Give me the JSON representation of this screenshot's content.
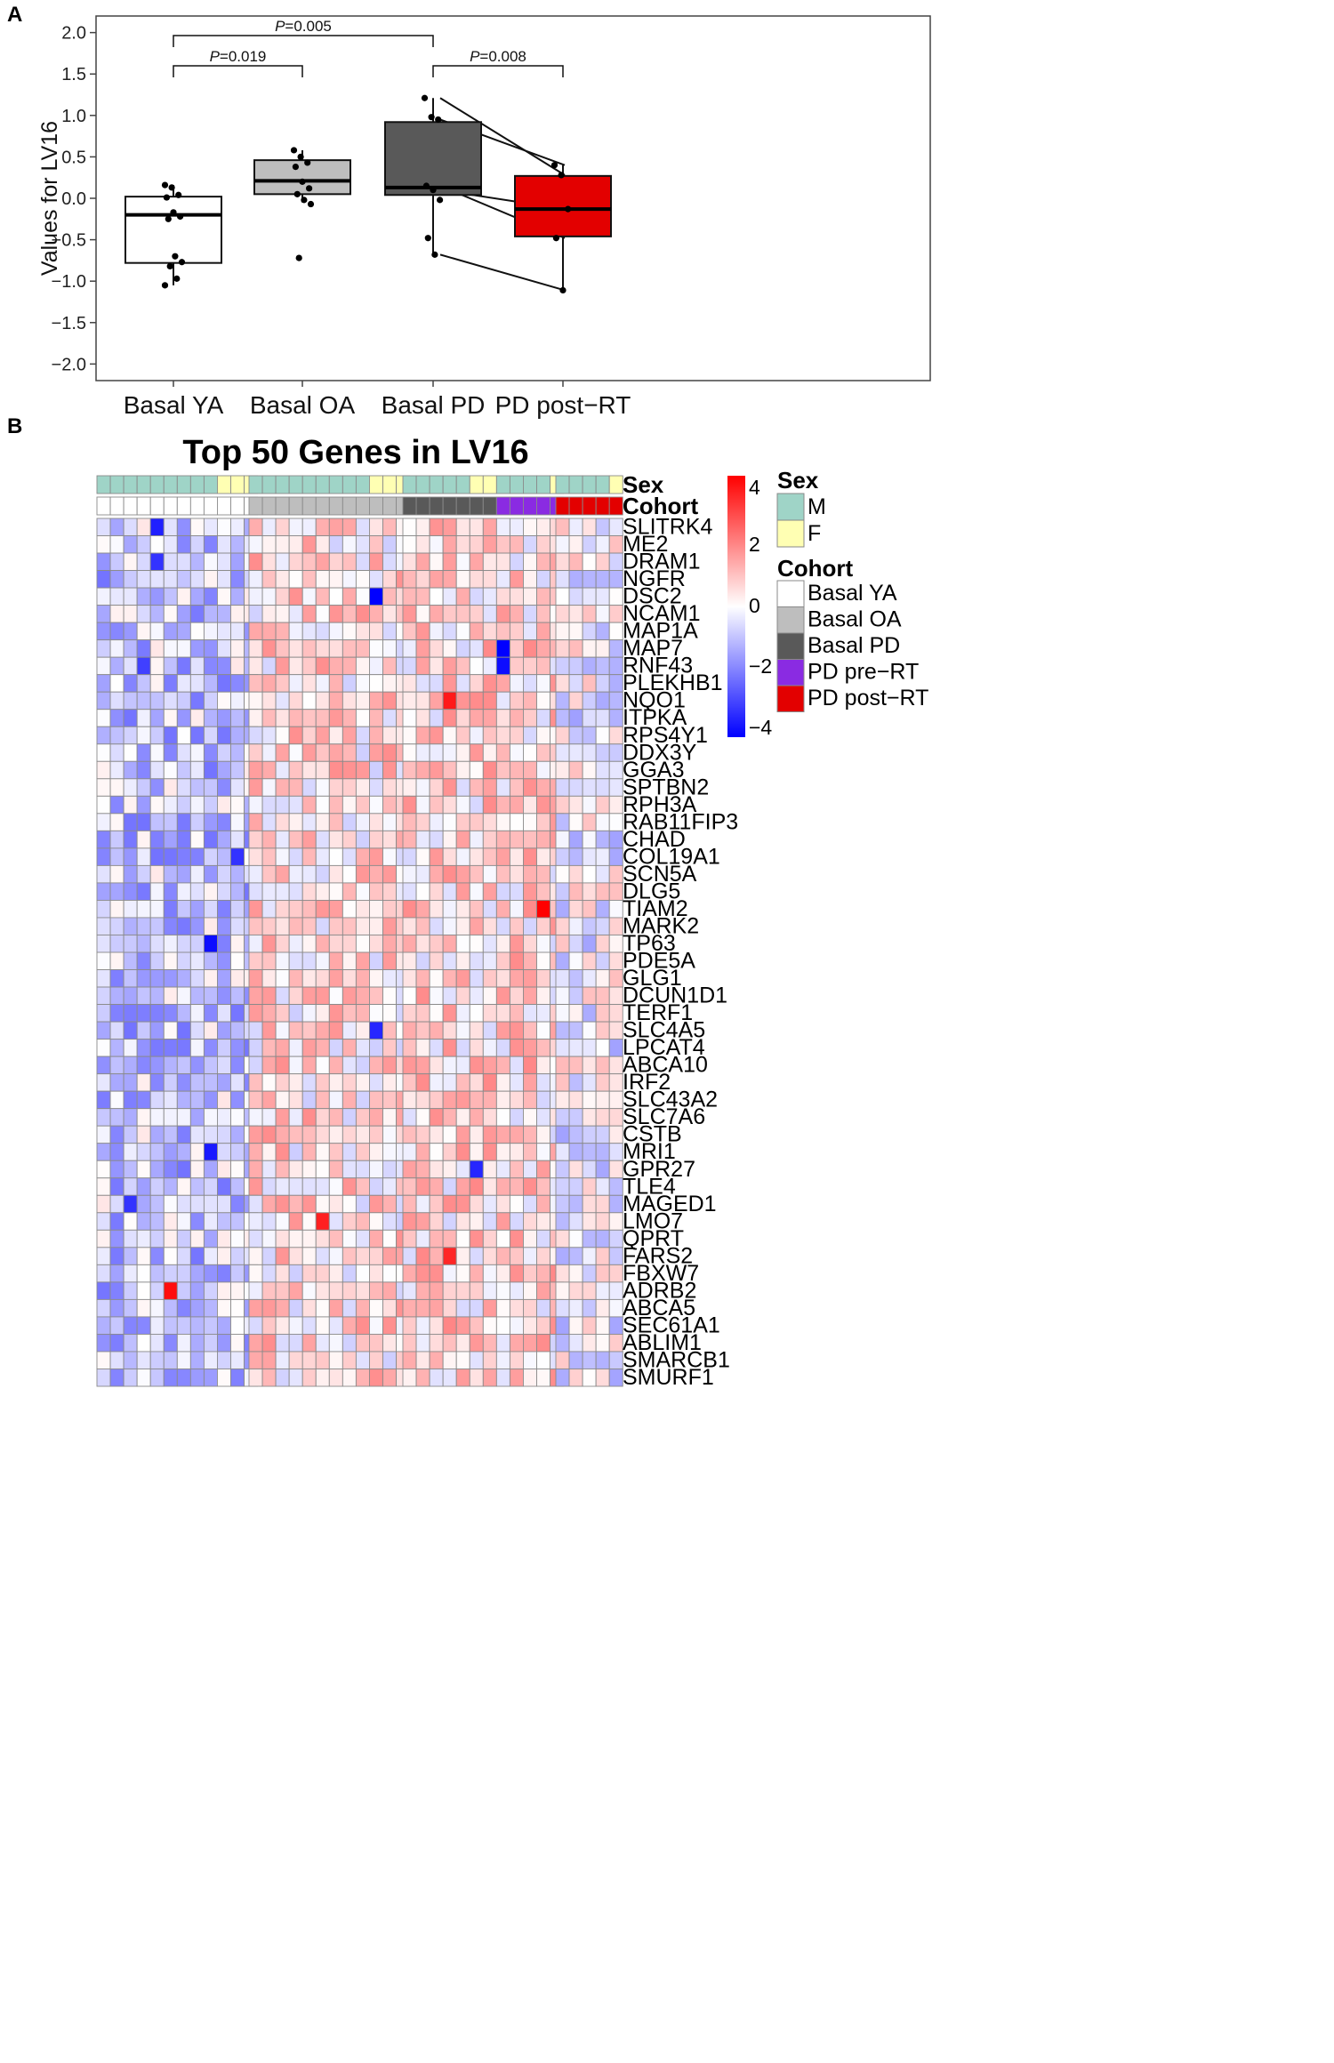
{
  "chart_data": [
    {
      "type": "box",
      "panel": "A",
      "title": "",
      "ylabel": "Values for LV16",
      "xlabel": "",
      "ylim": [
        -2.2,
        2.2
      ],
      "yticks": [
        2.0,
        1.5,
        1.0,
        0.5,
        0.0,
        -0.5,
        -1.0,
        -1.5,
        -2.0
      ],
      "ytick_labels": [
        "2.0",
        "1.5",
        "1.0",
        "0.5",
        "0.0",
        "−0.5",
        "−1.0",
        "−1.5",
        "−2.0"
      ],
      "grid": false,
      "categories": [
        "Basal YA",
        "Basal OA",
        "Basal PD",
        "PD post−RT"
      ],
      "boxes": [
        {
          "name": "Basal YA",
          "fill": "#ffffff",
          "q1": -0.78,
          "median": -0.2,
          "q3": 0.02,
          "whisker_low": -1.05,
          "whisker_high": 0.16,
          "points": [
            0.16,
            0.13,
            0.04,
            0.01,
            -0.17,
            -0.22,
            -0.25,
            -0.7,
            -0.77,
            -0.82,
            -0.97,
            -1.05
          ]
        },
        {
          "name": "Basal OA",
          "fill": "#bebebe",
          "q1": 0.05,
          "median": 0.21,
          "q3": 0.46,
          "whisker_low": -0.05,
          "whisker_high": 0.58,
          "points": [
            0.58,
            0.5,
            0.43,
            0.38,
            0.2,
            0.12,
            0.05,
            -0.02,
            -0.07,
            -0.72
          ]
        },
        {
          "name": "Basal PD",
          "fill": "#595959",
          "q1": 0.04,
          "median": 0.13,
          "q3": 0.92,
          "whisker_low": -0.68,
          "whisker_high": 1.21,
          "points": [
            1.21,
            0.98,
            0.95,
            0.15,
            0.1,
            -0.02,
            -0.48,
            -0.68
          ]
        },
        {
          "name": "PD post−RT",
          "fill": "#e30000",
          "q1": -0.46,
          "median": -0.13,
          "q3": 0.27,
          "whisker_low": -1.11,
          "whisker_high": 0.4,
          "points": [
            0.4,
            0.28,
            -0.13,
            -0.48,
            -1.11
          ]
        }
      ],
      "paired_lines": [
        [
          1.21,
          0.28
        ],
        [
          0.95,
          0.4
        ],
        [
          0.15,
          -0.48
        ],
        [
          0.1,
          -0.13
        ],
        [
          -0.68,
          -1.11
        ]
      ],
      "annotations": [
        {
          "between": [
            0,
            2
          ],
          "p": "0.005",
          "level": 2
        },
        {
          "between": [
            0,
            1
          ],
          "p": "0.019",
          "level": 1
        },
        {
          "between": [
            2,
            3
          ],
          "p": "0.008",
          "level": 1
        }
      ]
    },
    {
      "type": "heatmap",
      "panel": "B",
      "title": "Top 50 Genes in LV16",
      "rows": [
        "SLITRK4",
        "ME2",
        "DRAM1",
        "NGFR",
        "DSC2",
        "NCAM1",
        "MAP1A",
        "MAP7",
        "RNF43",
        "PLEKHB1",
        "NQO1",
        "ITPKA",
        "RPS4Y1",
        "DDX3Y",
        "GGA3",
        "SPTBN2",
        "RPH3A",
        "RAB11FIP3",
        "CHAD",
        "COL19A1",
        "SCN5A",
        "DLG5",
        "TIAM2",
        "MARK2",
        "TP63",
        "PDE5A",
        "GLG1",
        "DCUN1D1",
        "TERF1",
        "SLC4A5",
        "LPCAT4",
        "ABCA10",
        "IRF2",
        "SLC43A2",
        "SLC7A6",
        "CSTB",
        "MRI1",
        "GPR27",
        "TLE4",
        "MAGED1",
        "LMO7",
        "QPRT",
        "FARS2",
        "FBXW7",
        "ADRB2",
        "ABCA5",
        "SEC61A1",
        "ABLIM1",
        "SMARCB1",
        "SMURF1"
      ],
      "groups": [
        {
          "name": "Basal YA",
          "n": 12,
          "sex": [
            "M",
            "M",
            "M",
            "M",
            "M",
            "M",
            "M",
            "M",
            "M",
            "F",
            "F",
            "F"
          ],
          "cohort": [
            "Basal YA",
            "Basal YA",
            "Basal YA",
            "Basal YA",
            "Basal YA",
            "Basal YA",
            "Basal YA",
            "Basal YA",
            "Basal YA",
            "Basal YA",
            "Basal YA",
            "Basal YA"
          ]
        },
        {
          "name": "Basal OA",
          "n": 12,
          "sex": [
            "M",
            "M",
            "M",
            "M",
            "M",
            "M",
            "M",
            "M",
            "M",
            "F",
            "F",
            "F"
          ],
          "cohort": [
            "Basal OA",
            "Basal OA",
            "Basal OA",
            "Basal OA",
            "Basal OA",
            "Basal OA",
            "Basal OA",
            "Basal OA",
            "Basal OA",
            "Basal OA",
            "Basal OA",
            "Basal OA"
          ]
        },
        {
          "name": "PD",
          "n": 12,
          "sex": [
            "M",
            "M",
            "M",
            "M",
            "M",
            "F",
            "F",
            "M",
            "M",
            "M",
            "M",
            "F"
          ],
          "cohort": [
            "Basal PD",
            "Basal PD",
            "Basal PD",
            "Basal PD",
            "Basal PD",
            "Basal PD",
            "Basal PD",
            "PD pre−RT",
            "PD pre−RT",
            "PD pre−RT",
            "PD pre−RT",
            "PD pre−RT"
          ]
        },
        {
          "name": "PD post−RT",
          "n": 5,
          "sex": [
            "M",
            "M",
            "M",
            "M",
            "F"
          ],
          "cohort": [
            "PD post−RT",
            "PD post−RT",
            "PD post−RT",
            "PD post−RT",
            "PD post−RT"
          ]
        }
      ],
      "annotation_rows": [
        "Sex",
        "Cohort"
      ],
      "highlights": [
        {
          "gene": "SLITRK4",
          "col": 4,
          "value": -3.5
        },
        {
          "gene": "DRAM1",
          "col": 4,
          "value": -3.2
        },
        {
          "gene": "DSC2",
          "col": 21,
          "value": -4.0
        },
        {
          "gene": "MAP7",
          "col": 31,
          "value": -4.0
        },
        {
          "gene": "RNF43",
          "col": 3,
          "value": -3.0
        },
        {
          "gene": "RNF43",
          "col": 31,
          "value": -3.8
        },
        {
          "gene": "NQO1",
          "col": 27,
          "value": 3.6
        },
        {
          "gene": "TIAM2",
          "col": 34,
          "value": 4.0
        },
        {
          "gene": "TP63",
          "col": 8,
          "value": -3.8
        },
        {
          "gene": "ADRB2",
          "col": 5,
          "value": 3.8
        },
        {
          "gene": "LMO7",
          "col": 17,
          "value": 3.5
        },
        {
          "gene": "FARS2",
          "col": 27,
          "value": 3.4
        },
        {
          "gene": "MRI1",
          "col": 8,
          "value": -3.6
        },
        {
          "gene": "GPR27",
          "col": 29,
          "value": -3.4
        },
        {
          "gene": "MAGED1",
          "col": 2,
          "value": -3.2
        },
        {
          "gene": "SLC4A5",
          "col": 21,
          "value": -3.4
        },
        {
          "gene": "COL19A1",
          "col": 10,
          "value": -3.2
        }
      ],
      "color_scale": {
        "min": -4,
        "max": 4,
        "low": "#0000ff",
        "mid": "#ffffff",
        "high": "#ff0000",
        "ticks": [
          "4",
          "2",
          "0",
          "−2",
          "−4"
        ]
      },
      "legend": {
        "sex_title": "Sex",
        "sex": [
          {
            "label": "M",
            "color": "#9fd4c7"
          },
          {
            "label": "F",
            "color": "#ffffb3"
          }
        ],
        "cohort_title": "Cohort",
        "cohort": [
          {
            "label": "Basal YA",
            "color": "#ffffff"
          },
          {
            "label": "Basal OA",
            "color": "#bebebe"
          },
          {
            "label": "Basal PD",
            "color": "#595959"
          },
          {
            "label": "PD pre−RT",
            "color": "#8a2be2"
          },
          {
            "label": "PD post−RT",
            "color": "#e30000"
          }
        ]
      }
    }
  ],
  "panel_labels": {
    "a": "A",
    "b": "B"
  },
  "p_prefix": "P",
  "colors": {
    "pd_box": "#595959",
    "post_rt_box": "#e30000",
    "oa_box": "#bebebe"
  }
}
